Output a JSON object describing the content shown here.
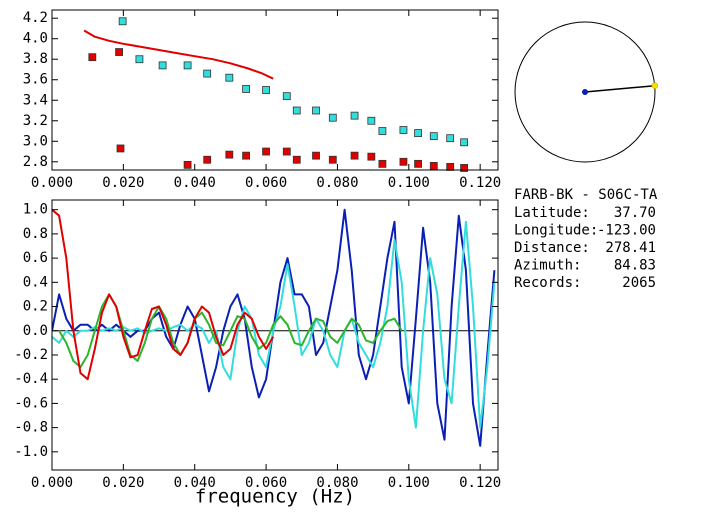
{
  "chart_data": [
    {
      "type": "scatter",
      "xlim": [
        0,
        0.125
      ],
      "xticks": [
        {
          "value": 0,
          "label": "0.000"
        },
        {
          "value": 0.02,
          "label": "0.020"
        },
        {
          "value": 0.04,
          "label": "0.040"
        },
        {
          "value": 0.06,
          "label": "0.060"
        },
        {
          "value": 0.08,
          "label": "0.080"
        },
        {
          "value": 0.1,
          "label": "0.100"
        },
        {
          "value": 0.12,
          "label": "0.120"
        }
      ],
      "ylim": [
        2.72,
        4.28
      ],
      "yticks": [
        4.2,
        {
          "value": 4.0,
          "label": "4.0"
        },
        3.8,
        3.6,
        3.4,
        3.2,
        {
          "value": 3.0,
          "label": "3.0"
        },
        2.8
      ],
      "series": [
        {
          "style": "line",
          "color": "#e00000",
          "x": [
            0.009,
            0.012,
            0.016,
            0.02,
            0.025,
            0.03,
            0.035,
            0.04,
            0.045,
            0.05,
            0.055,
            0.059,
            0.062
          ],
          "values": [
            4.08,
            4.02,
            3.98,
            3.95,
            3.92,
            3.89,
            3.86,
            3.83,
            3.8,
            3.76,
            3.71,
            3.66,
            3.61
          ]
        },
        {
          "style": "square",
          "color": "#33dddd",
          "x": [
            0.0198,
            0.0245,
            0.031,
            0.038,
            0.0435,
            0.0497,
            0.0544,
            0.06,
            0.0658,
            0.0686,
            0.074,
            0.0787,
            0.0848,
            0.0895,
            0.0926,
            0.0985,
            0.1026,
            0.107,
            0.1116,
            0.1155
          ],
          "values": [
            4.17,
            3.8,
            3.74,
            3.74,
            3.66,
            3.62,
            3.51,
            3.5,
            3.44,
            3.3,
            3.3,
            3.23,
            3.25,
            3.2,
            3.1,
            3.11,
            3.08,
            3.05,
            3.03,
            2.99
          ]
        },
        {
          "style": "square",
          "color": "#e00000",
          "x": [
            0.0113,
            0.0188,
            0.0192,
            0.038,
            0.0435,
            0.0497,
            0.0544,
            0.06,
            0.0658,
            0.0686,
            0.074,
            0.0787,
            0.0848,
            0.0895,
            0.0926,
            0.0985,
            0.1026,
            0.107,
            0.1116,
            0.1155
          ],
          "values": [
            3.82,
            3.87,
            2.93,
            2.77,
            2.82,
            2.87,
            2.86,
            2.9,
            2.9,
            2.82,
            2.86,
            2.82,
            2.86,
            2.85,
            2.78,
            2.8,
            2.78,
            2.76,
            2.75,
            2.74
          ]
        }
      ]
    },
    {
      "type": "line",
      "x_label": "frequency (Hz)",
      "xlim": [
        0,
        0.125
      ],
      "xticks": [
        {
          "value": 0,
          "label": "0.000"
        },
        {
          "value": 0.02,
          "label": "0.020"
        },
        {
          "value": 0.04,
          "label": "0.040"
        },
        {
          "value": 0.06,
          "label": "0.060"
        },
        {
          "value": 0.08,
          "label": "0.080"
        },
        {
          "value": 0.1,
          "label": "0.100"
        },
        {
          "value": 0.12,
          "label": "0.120"
        }
      ],
      "ylim": [
        -1.15,
        1.08
      ],
      "yticks": [
        {
          "value": 1.0,
          "label": "1.0"
        },
        0.8,
        0.6,
        0.4,
        0.2,
        {
          "value": 0.0,
          "label": "0.0"
        },
        -0.2,
        -0.4,
        -0.6,
        -0.8,
        {
          "value": -1.0,
          "label": "-1.0"
        }
      ],
      "zero_line": true,
      "series": [
        {
          "style": "line",
          "color": "#0a1fb5",
          "x": [
            0,
            0.002,
            0.004,
            0.006,
            0.008,
            0.01,
            0.012,
            0.014,
            0.016,
            0.018,
            0.02,
            0.022,
            0.024,
            0.026,
            0.028,
            0.03,
            0.032,
            0.034,
            0.036,
            0.038,
            0.04,
            0.042,
            0.044,
            0.046,
            0.048,
            0.05,
            0.052,
            0.054,
            0.056,
            0.058,
            0.06,
            0.062,
            0.064,
            0.066,
            0.068,
            0.07,
            0.072,
            0.074,
            0.076,
            0.078,
            0.08,
            0.082,
            0.084,
            0.086,
            0.088,
            0.09,
            0.092,
            0.094,
            0.096,
            0.098,
            0.1,
            0.102,
            0.104,
            0.106,
            0.108,
            0.11,
            0.112,
            0.114,
            0.116,
            0.118,
            0.12,
            0.122,
            0.124
          ],
          "values": [
            0.0,
            0.3,
            0.1,
            0.0,
            0.05,
            0.05,
            0.0,
            0.05,
            0.0,
            0.05,
            0.0,
            -0.05,
            0.0,
            0.0,
            0.1,
            0.15,
            -0.05,
            -0.15,
            0.05,
            0.2,
            0.1,
            -0.2,
            -0.5,
            -0.3,
            0.0,
            0.2,
            0.3,
            0.1,
            -0.3,
            -0.55,
            -0.4,
            0.0,
            0.4,
            0.6,
            0.3,
            0.3,
            0.2,
            -0.2,
            -0.1,
            0.2,
            0.5,
            1.0,
            0.5,
            -0.2,
            -0.4,
            -0.2,
            0.2,
            0.6,
            0.9,
            -0.3,
            -0.6,
            0.1,
            0.85,
            0.4,
            -0.6,
            -0.9,
            0.2,
            0.95,
            0.5,
            -0.6,
            -0.95,
            -0.2,
            0.5
          ]
        },
        {
          "style": "line",
          "color": "#33dddd",
          "x": [
            0,
            0.002,
            0.004,
            0.006,
            0.008,
            0.01,
            0.012,
            0.014,
            0.016,
            0.018,
            0.02,
            0.022,
            0.024,
            0.026,
            0.028,
            0.03,
            0.032,
            0.034,
            0.036,
            0.038,
            0.04,
            0.042,
            0.044,
            0.046,
            0.048,
            0.05,
            0.052,
            0.054,
            0.056,
            0.058,
            0.06,
            0.062,
            0.064,
            0.066,
            0.068,
            0.07,
            0.072,
            0.074,
            0.076,
            0.078,
            0.08,
            0.082,
            0.084,
            0.086,
            0.088,
            0.09,
            0.092,
            0.094,
            0.096,
            0.098,
            0.1,
            0.102,
            0.104,
            0.106,
            0.108,
            0.11,
            0.112,
            0.114,
            0.116,
            0.118,
            0.12,
            0.122,
            0.124
          ],
          "values": [
            -0.05,
            -0.1,
            0.0,
            -0.05,
            0.0,
            0.0,
            0.03,
            0.0,
            0.02,
            0.0,
            0.03,
            0.0,
            0.02,
            -0.02,
            0.0,
            0.02,
            0.0,
            0.03,
            0.05,
            0.0,
            0.05,
            0.02,
            -0.1,
            0.0,
            -0.3,
            -0.4,
            0.0,
            0.2,
            0.1,
            -0.2,
            -0.3,
            0.0,
            0.2,
            0.55,
            0.2,
            -0.2,
            -0.1,
            0.1,
            0.0,
            -0.2,
            -0.3,
            0.0,
            0.1,
            -0.1,
            -0.2,
            -0.3,
            -0.1,
            0.2,
            0.75,
            0.4,
            -0.4,
            -0.8,
            0.0,
            0.6,
            0.3,
            -0.4,
            -0.6,
            0.2,
            0.9,
            0.2,
            -0.8,
            -0.3,
            0.4
          ]
        },
        {
          "style": "line",
          "color": "#2cb52c",
          "x": [
            0.002,
            0.004,
            0.006,
            0.008,
            0.01,
            0.012,
            0.014,
            0.016,
            0.018,
            0.02,
            0.022,
            0.024,
            0.026,
            0.028,
            0.03,
            0.032,
            0.034,
            0.036,
            0.038,
            0.04,
            0.042,
            0.044,
            0.046,
            0.048,
            0.05,
            0.052,
            0.054,
            0.056,
            0.058,
            0.06,
            0.062,
            0.064,
            0.066,
            0.068,
            0.07,
            0.072,
            0.074,
            0.076,
            0.078,
            0.08,
            0.082,
            0.084,
            0.086,
            0.088,
            0.09,
            0.092,
            0.094,
            0.096,
            0.098
          ],
          "values": [
            0.0,
            -0.1,
            -0.25,
            -0.3,
            -0.2,
            0.0,
            0.2,
            0.3,
            0.2,
            0.0,
            -0.2,
            -0.25,
            -0.1,
            0.1,
            0.2,
            0.1,
            -0.1,
            -0.2,
            -0.1,
            0.1,
            0.15,
            0.05,
            -0.1,
            -0.12,
            0.0,
            0.12,
            0.1,
            -0.05,
            -0.15,
            -0.1,
            0.05,
            0.12,
            0.05,
            -0.1,
            -0.12,
            0.0,
            0.1,
            0.08,
            -0.05,
            -0.1,
            0.0,
            0.1,
            0.05,
            -0.08,
            -0.1,
            0.0,
            0.08,
            0.1,
            0.0
          ]
        },
        {
          "style": "line",
          "color": "#e00000",
          "x": [
            0,
            0.002,
            0.004,
            0.006,
            0.008,
            0.01,
            0.012,
            0.014,
            0.016,
            0.018,
            0.02,
            0.022,
            0.024,
            0.026,
            0.028,
            0.03,
            0.032,
            0.034,
            0.036,
            0.038,
            0.04,
            0.042,
            0.044,
            0.046,
            0.048,
            0.05,
            0.052,
            0.054,
            0.056,
            0.058,
            0.06,
            0.062
          ],
          "values": [
            1.0,
            0.95,
            0.6,
            0.0,
            -0.35,
            -0.4,
            -0.15,
            0.15,
            0.3,
            0.2,
            -0.05,
            -0.22,
            -0.2,
            0.0,
            0.18,
            0.2,
            0.05,
            -0.15,
            -0.2,
            -0.1,
            0.1,
            0.2,
            0.15,
            -0.05,
            -0.2,
            -0.15,
            0.05,
            0.15,
            0.1,
            -0.05,
            -0.15,
            -0.05
          ]
        }
      ]
    }
  ],
  "station": {
    "name": "FARB-BK - S06C-TA",
    "fields": [
      {
        "label": "Latitude:",
        "value": "37.70"
      },
      {
        "label": "Longitude:",
        "value": "-123.00"
      },
      {
        "label": "Distance:",
        "value": "278.41"
      },
      {
        "label": "Azimuth:",
        "value": "84.83"
      },
      {
        "label": "Records:",
        "value": "2065"
      }
    ]
  }
}
